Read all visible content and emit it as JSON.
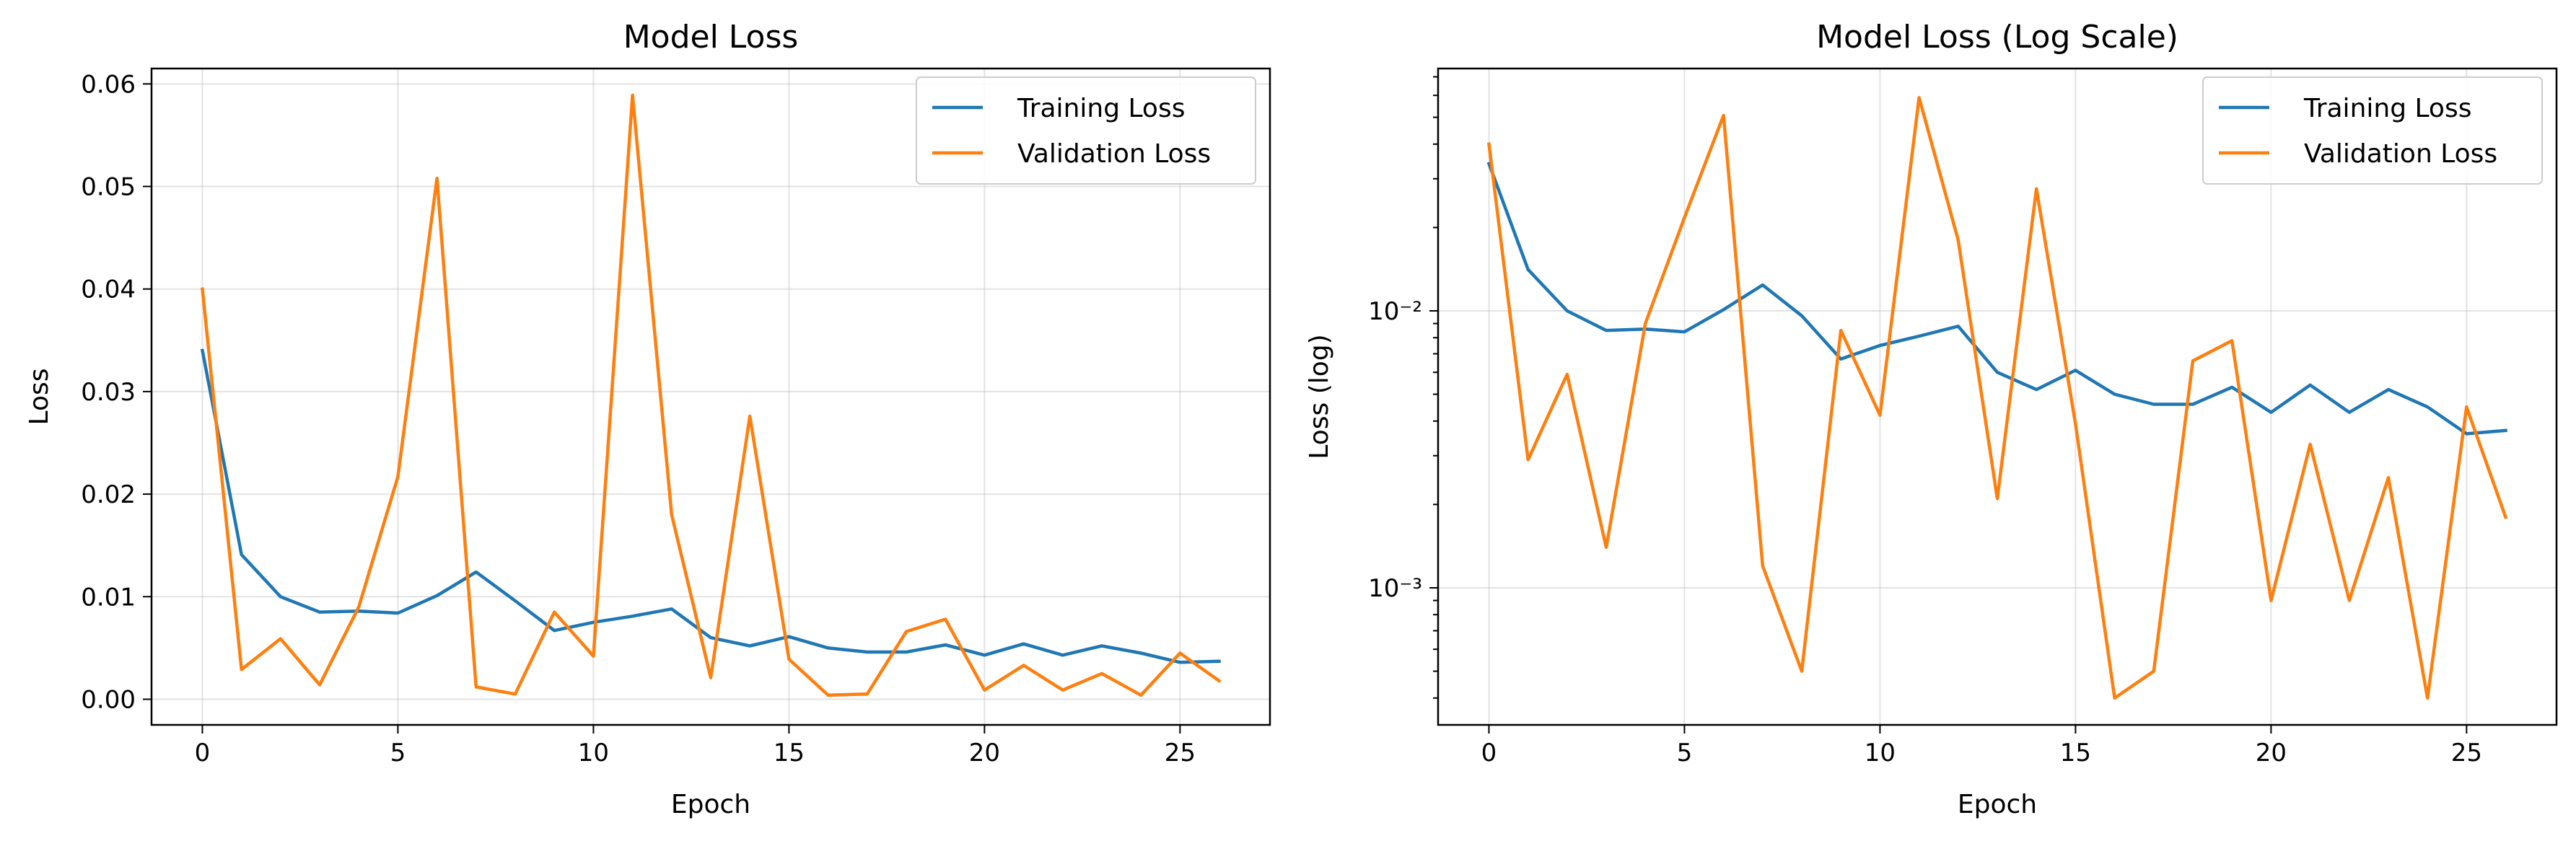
{
  "chart_data": [
    {
      "type": "line",
      "title": "Model Loss",
      "xlabel": "Epoch",
      "ylabel": "Loss",
      "xlim": [
        -1.3,
        27.3
      ],
      "ylim": [
        -0.0025,
        0.0615
      ],
      "yscale": "linear",
      "xticks": [
        0,
        5,
        10,
        15,
        20,
        25
      ],
      "yticks": [
        0.0,
        0.01,
        0.02,
        0.03,
        0.04,
        0.05,
        0.06
      ],
      "ytick_labels": [
        "0.00",
        "0.01",
        "0.02",
        "0.03",
        "0.04",
        "0.05",
        "0.06"
      ],
      "grid": true,
      "legend_position": "top-right",
      "x": [
        0,
        1,
        2,
        3,
        4,
        5,
        6,
        7,
        8,
        9,
        10,
        11,
        12,
        13,
        14,
        15,
        16,
        17,
        18,
        19,
        20,
        21,
        22,
        23,
        24,
        25,
        26
      ],
      "series": [
        {
          "name": "Training Loss",
          "color": "#1f77b4",
          "values": [
            0.034,
            0.0141,
            0.01,
            0.0085,
            0.0086,
            0.0084,
            0.0101,
            0.0124,
            0.0096,
            0.0067,
            0.0075,
            0.0081,
            0.0088,
            0.006,
            0.0052,
            0.0061,
            0.005,
            0.0046,
            0.0046,
            0.0053,
            0.0043,
            0.0054,
            0.0043,
            0.0052,
            0.0045,
            0.0036,
            0.0037
          ]
        },
        {
          "name": "Validation Loss",
          "color": "#ff7f0e",
          "values": [
            0.04,
            0.0029,
            0.0059,
            0.0014,
            0.009,
            0.0217,
            0.0508,
            0.0012,
            0.0005,
            0.0085,
            0.0042,
            0.0589,
            0.018,
            0.0021,
            0.0276,
            0.0039,
            0.0004,
            0.0005,
            0.0066,
            0.0078,
            0.0009,
            0.0033,
            0.0009,
            0.0025,
            0.0004,
            0.0045,
            0.0018
          ]
        }
      ]
    },
    {
      "type": "line",
      "title": "Model Loss (Log Scale)",
      "xlabel": "Epoch",
      "ylabel": "Loss (log)",
      "xlim": [
        -1.3,
        27.3
      ],
      "ylim": [
        0.00032,
        0.075
      ],
      "yscale": "log",
      "xticks": [
        0,
        5,
        10,
        15,
        20,
        25
      ],
      "yticks_major": [
        0.001,
        0.01
      ],
      "ytick_labels": [
        "10⁻³",
        "10⁻²"
      ],
      "grid": true,
      "legend_position": "top-right",
      "x": [
        0,
        1,
        2,
        3,
        4,
        5,
        6,
        7,
        8,
        9,
        10,
        11,
        12,
        13,
        14,
        15,
        16,
        17,
        18,
        19,
        20,
        21,
        22,
        23,
        24,
        25,
        26
      ],
      "series": [
        {
          "name": "Training Loss",
          "color": "#1f77b4",
          "values": [
            0.034,
            0.0141,
            0.01,
            0.0085,
            0.0086,
            0.0084,
            0.0101,
            0.0124,
            0.0096,
            0.0067,
            0.0075,
            0.0081,
            0.0088,
            0.006,
            0.0052,
            0.0061,
            0.005,
            0.0046,
            0.0046,
            0.0053,
            0.0043,
            0.0054,
            0.0043,
            0.0052,
            0.0045,
            0.0036,
            0.0037
          ]
        },
        {
          "name": "Validation Loss",
          "color": "#ff7f0e",
          "values": [
            0.04,
            0.0029,
            0.0059,
            0.0014,
            0.009,
            0.0217,
            0.0508,
            0.0012,
            0.0005,
            0.0085,
            0.0042,
            0.0589,
            0.018,
            0.0021,
            0.0276,
            0.0039,
            0.0004,
            0.0005,
            0.0066,
            0.0078,
            0.0009,
            0.0033,
            0.0009,
            0.0025,
            0.0004,
            0.0045,
            0.0018
          ]
        }
      ]
    }
  ]
}
